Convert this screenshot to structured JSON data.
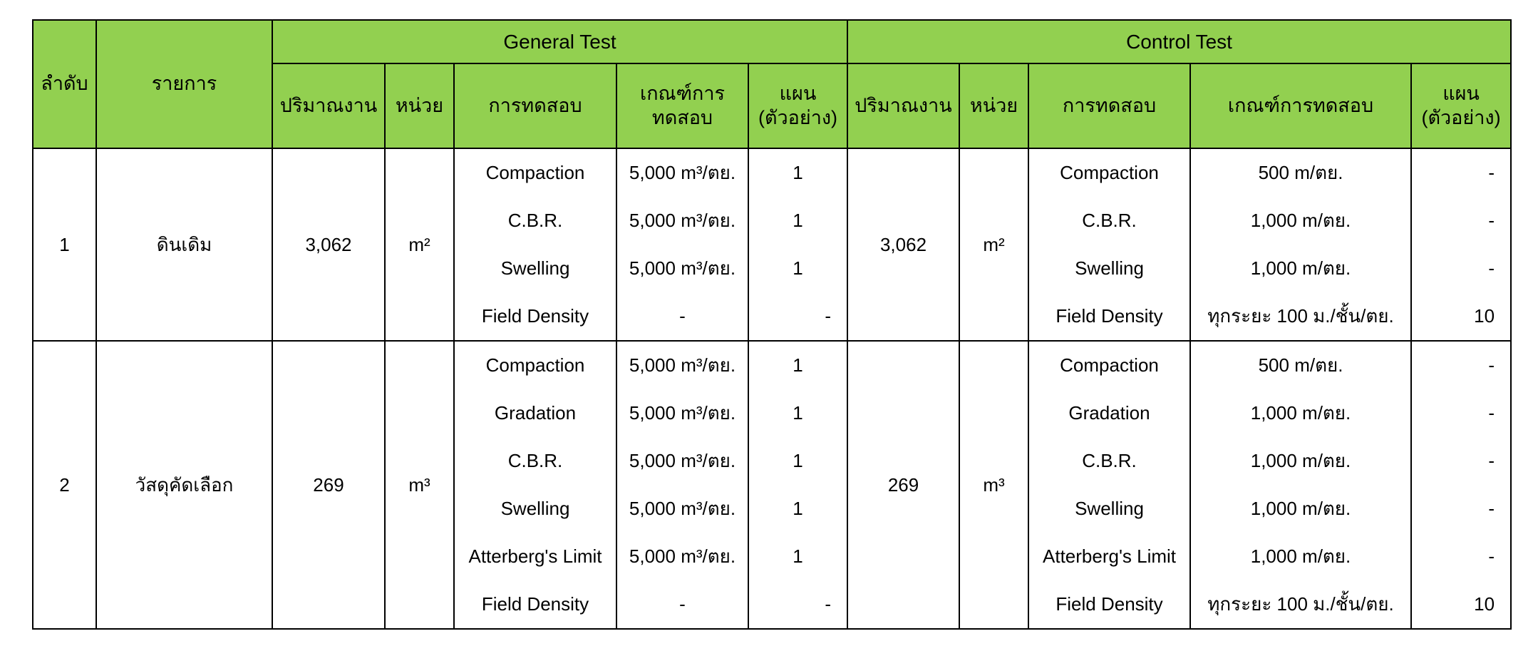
{
  "colors": {
    "header_green": "#92d050",
    "border": "#000000",
    "text": "#000000",
    "background": "#ffffff"
  },
  "header": {
    "order": "ลำดับ",
    "item": "รายการ",
    "general_test": "General Test",
    "control_test": "Control Test",
    "sub": {
      "quantity": "ปริมาณงาน",
      "unit": "หน่วย",
      "test": "การทดสอบ",
      "criteria_general": "เกณฑ์การ\nทดสอบ",
      "criteria_control": "เกณฑ์การทดสอบ",
      "plan": "แผน\n(ตัวอย่าง)"
    }
  },
  "rows": [
    {
      "no": "1",
      "item": "ดินเดิม",
      "general": {
        "quantity": "3,062",
        "unit": "m²",
        "tests": [
          "Compaction",
          "C.B.R.",
          "Swelling",
          "Field Density"
        ],
        "criteria": [
          "5,000 m³/ตย.",
          "5,000 m³/ตย.",
          "5,000 m³/ตย.",
          "-"
        ],
        "plan": [
          "1",
          "1",
          "1",
          "-"
        ]
      },
      "control": {
        "quantity": "3,062",
        "unit": "m²",
        "tests": [
          "Compaction",
          "C.B.R.",
          "Swelling",
          "Field Density"
        ],
        "criteria": [
          "500 m/ตย.",
          "1,000 m/ตย.",
          "1,000 m/ตย.",
          "ทุกระยะ 100 ม./ชั้น/ตย."
        ],
        "plan": [
          "-",
          "-",
          "-",
          "10"
        ]
      }
    },
    {
      "no": "2",
      "item": "วัสดุคัดเลือก",
      "general": {
        "quantity": "269",
        "unit": "m³",
        "tests": [
          "Compaction",
          "Gradation",
          "C.B.R.",
          "Swelling",
          "Atterberg's Limit",
          "Field Density"
        ],
        "criteria": [
          "5,000 m³/ตย.",
          "5,000 m³/ตย.",
          "5,000 m³/ตย.",
          "5,000 m³/ตย.",
          "5,000 m³/ตย.",
          "-"
        ],
        "plan": [
          "1",
          "1",
          "1",
          "1",
          "1",
          "-"
        ]
      },
      "control": {
        "quantity": "269",
        "unit": "m³",
        "tests": [
          "Compaction",
          "Gradation",
          "C.B.R.",
          "Swelling",
          "Atterberg's Limit",
          "Field Density"
        ],
        "criteria": [
          "500 m/ตย.",
          "1,000 m/ตย.",
          "1,000 m/ตย.",
          "1,000 m/ตย.",
          "1,000 m/ตย.",
          "ทุกระยะ 100 ม./ชั้น/ตย."
        ],
        "plan": [
          "-",
          "-",
          "-",
          "-",
          "-",
          "10"
        ]
      }
    }
  ]
}
